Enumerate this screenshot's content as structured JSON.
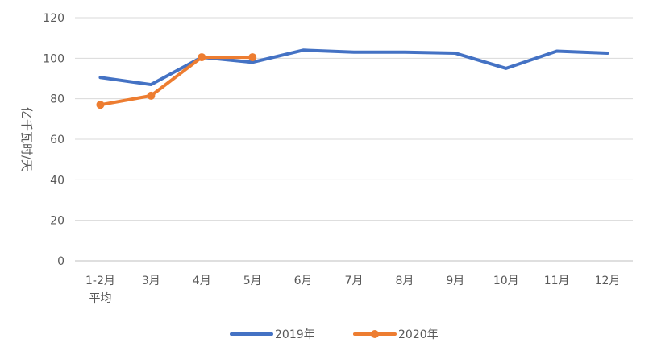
{
  "chart_data": {
    "type": "line",
    "categories": [
      "1-2月\n平均",
      "3月",
      "4月",
      "5月",
      "6月",
      "7月",
      "8月",
      "9月",
      "10月",
      "11月",
      "12月"
    ],
    "ylabel": "亿千瓦时/天",
    "ylim": [
      0,
      120
    ],
    "yticks": [
      0,
      20,
      40,
      60,
      80,
      100,
      120
    ],
    "grid": true,
    "legend_position": "bottom",
    "series": [
      {
        "name": "2019年",
        "color": "#4472C4",
        "markers": false,
        "values": [
          90.5,
          87,
          100.5,
          98,
          104,
          103,
          103,
          102.5,
          95,
          103.5,
          102.5
        ]
      },
      {
        "name": "2020年",
        "color": "#ED7D31",
        "markers": true,
        "values": [
          77,
          81.5,
          100.5,
          100.5,
          null,
          null,
          null,
          null,
          null,
          null,
          null
        ]
      }
    ]
  }
}
